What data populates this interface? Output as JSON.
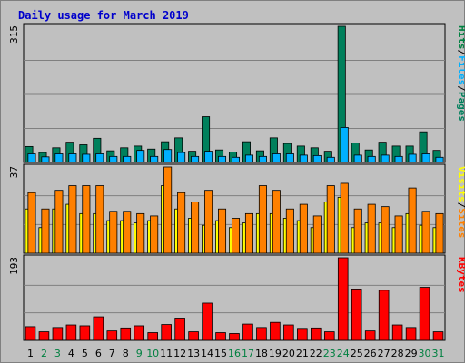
{
  "chart_data": {
    "type": "bar",
    "title": "Daily usage for March 2019",
    "days": [
      "1",
      "2",
      "3",
      "4",
      "5",
      "6",
      "7",
      "8",
      "9",
      "10",
      "11",
      "12",
      "13",
      "14",
      "15",
      "16",
      "17",
      "18",
      "19",
      "20",
      "21",
      "22",
      "23",
      "24",
      "25",
      "26",
      "27",
      "28",
      "29",
      "30",
      "31"
    ],
    "weekend_days": [
      "2",
      "3",
      "9",
      "10",
      "16",
      "17",
      "23",
      "24",
      "30",
      "31"
    ],
    "colors": {
      "pages": "#00805c",
      "files": "#00b0ff",
      "hits": "#008040",
      "visits": "#ffff00",
      "sites": "#ff8000",
      "kbytes": "#ff0000",
      "weekday_label": "#000000",
      "weekend_label": "#008040",
      "title": "#0000cc"
    },
    "panels": [
      {
        "id": "hits",
        "ymax_label": "315",
        "ymax": 315,
        "side_label": [
          "Hits",
          "Files",
          "Pages"
        ],
        "series": [
          {
            "name": "Pages",
            "color": "#00805c",
            "values": [
              37,
              23,
              34,
              47,
              41,
              56,
              27,
              34,
              38,
              31,
              48,
              57,
              26,
              106,
              29,
              24,
              48,
              27,
              57,
              44,
              38,
              34,
              26,
              315,
              45,
              29,
              47,
              38,
              38,
              71,
              28
            ]
          },
          {
            "name": "Files",
            "color": "#00b0ff",
            "values": [
              20,
              13,
              20,
              20,
              19,
              20,
              14,
              14,
              28,
              14,
              30,
              23,
              14,
              26,
              14,
              12,
              17,
              14,
              20,
              20,
              17,
              16,
              12,
              81,
              17,
              14,
              17,
              14,
              19,
              20,
              12
            ]
          }
        ]
      },
      {
        "id": "visits",
        "ymax_label": "37",
        "ymax": 37,
        "side_label": [
          "Visits",
          "Sites"
        ],
        "series": [
          {
            "name": "Visits",
            "color": "#ffff00",
            "values": [
              19,
              11,
              19,
              21,
              17,
              17,
              14,
              14,
              13,
              14,
              29,
              19,
              15,
              12,
              14,
              11,
              13,
              17,
              17,
              15,
              14,
              11,
              22,
              24,
              11,
              13,
              13,
              11,
              17,
              12,
              11
            ]
          },
          {
            "name": "Sites",
            "color": "#ff8000",
            "values": [
              26,
              19,
              27,
              29,
              29,
              29,
              18,
              18,
              17,
              16,
              37,
              26,
              22,
              27,
              19,
              15,
              17,
              29,
              27,
              19,
              21,
              16,
              29,
              30,
              19,
              21,
              20,
              16,
              28,
              18,
              17
            ]
          }
        ]
      },
      {
        "id": "kbytes",
        "ymax_label": "193",
        "ymax": 193,
        "side_label": [
          "KBytes"
        ],
        "series": [
          {
            "name": "KBytes",
            "color": "#ff0000",
            "values": [
              32,
              20,
              30,
              36,
              34,
              55,
              22,
              29,
              34,
              18,
              37,
              52,
              20,
              87,
              18,
              16,
              38,
              30,
              42,
              36,
              28,
              29,
              20,
              193,
              120,
              22,
              117,
              36,
              30,
              124,
              20
            ]
          }
        ]
      }
    ]
  }
}
